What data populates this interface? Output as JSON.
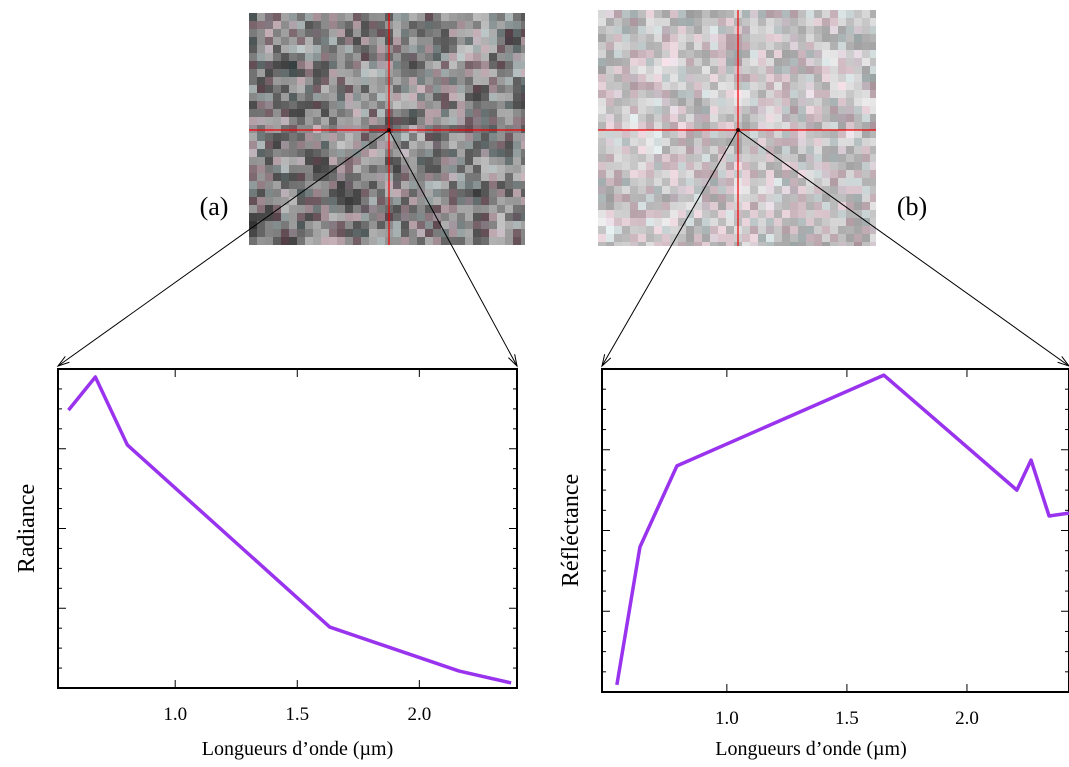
{
  "chart_data": [
    {
      "type": "line",
      "panel_label": "(a)",
      "y_label": "Radiance",
      "x_label": "Longueurs d’onde (µm)",
      "x": [
        0.563,
        0.673,
        0.804,
        1.633,
        2.163,
        2.376
      ],
      "series": [
        {
          "color": "#9933ee",
          "values": [
            87.1,
            97.5,
            76.2,
            19.1,
            5.3,
            1.6
          ]
        }
      ],
      "xlim": [
        0.52,
        2.4
      ],
      "ylim": [
        0,
        100
      ],
      "xticks": [
        {
          "value": 1,
          "label": "1.0"
        },
        1.5,
        {
          "value": 2,
          "label": "2.0"
        }
      ]
    },
    {
      "type": "line",
      "panel_label": "(b)",
      "y_label": "Réfléctance",
      "x_label": "Longueurs d’onde (µm)",
      "x": [
        0.542,
        0.638,
        0.792,
        1.654,
        2.208,
        2.267,
        2.342,
        2.425
      ],
      "series": [
        {
          "color": "#9933ee",
          "values": [
            2.2,
            44.9,
            70.0,
            98.1,
            62.5,
            71.8,
            54.5,
            55.4
          ]
        }
      ],
      "xlim": [
        0.48,
        2.425
      ],
      "ylim": [
        0,
        100
      ],
      "xticks": [
        {
          "value": 1,
          "label": "1.0"
        },
        1.5,
        {
          "value": 2,
          "label": "2.0"
        }
      ]
    }
  ]
}
